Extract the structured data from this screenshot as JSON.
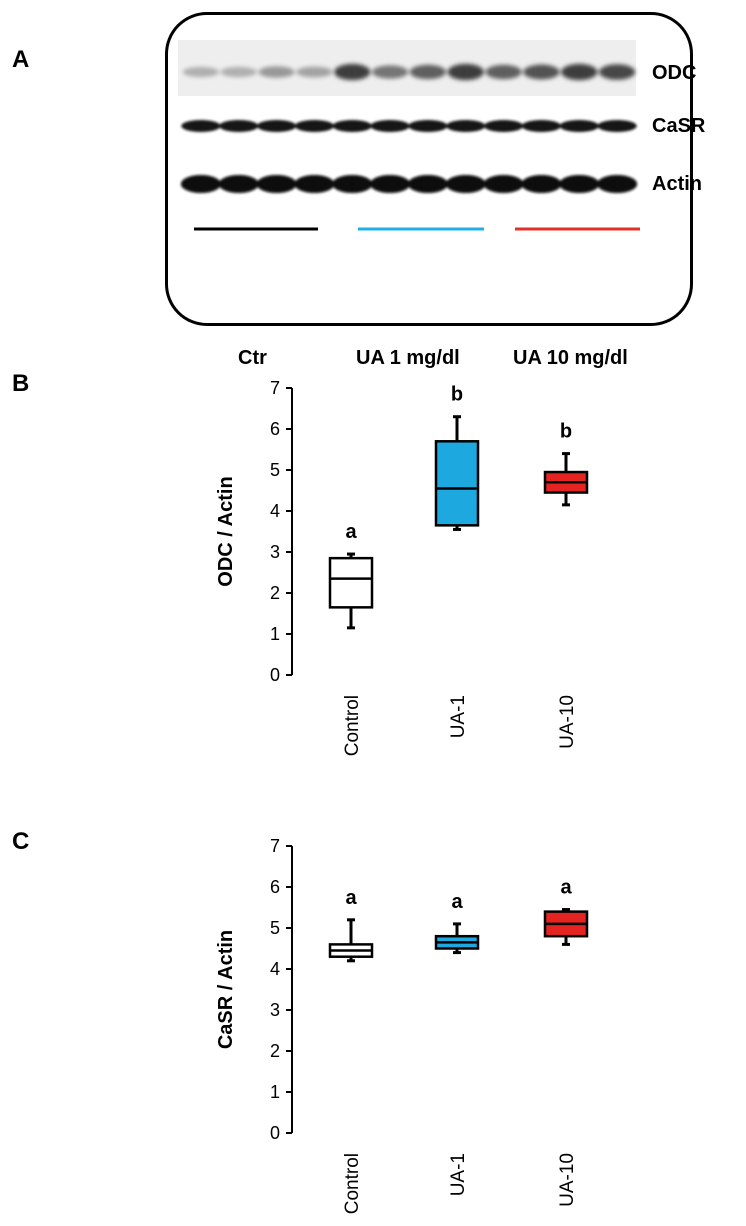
{
  "panels": {
    "a": {
      "letter": "A"
    },
    "b": {
      "letter": "B"
    },
    "c": {
      "letter": "C"
    }
  },
  "blot": {
    "bands": [
      "ODC",
      "CaSR",
      "Actin"
    ],
    "groups": [
      {
        "label": "Ctr",
        "color": "#000000"
      },
      {
        "label": "UA 1 mg/dl",
        "color": "#1fb0e6"
      },
      {
        "label": "UA 10 mg/dl",
        "color": "#e0302a"
      }
    ]
  },
  "chart_data": [
    {
      "type": "box",
      "ylabel": "ODC / Actin",
      "ylim": [
        0,
        7
      ],
      "yticks": [
        0,
        1,
        2,
        3,
        4,
        5,
        6,
        7
      ],
      "categories": [
        "Control",
        "UA-1",
        "UA-10"
      ],
      "fills": [
        "#ffffff",
        "#1ea8e0",
        "#e52421"
      ],
      "boxes": [
        {
          "min": 1.15,
          "q1": 1.65,
          "median": 2.35,
          "q3": 2.85,
          "max": 2.95
        },
        {
          "min": 3.55,
          "q1": 3.65,
          "median": 4.55,
          "q3": 5.7,
          "max": 6.3
        },
        {
          "min": 4.15,
          "q1": 4.45,
          "median": 4.7,
          "q3": 4.95,
          "max": 5.4
        }
      ],
      "annotations": [
        "a",
        "b",
        "b"
      ]
    },
    {
      "type": "box",
      "ylabel": "CaSR / Actin",
      "ylim": [
        0,
        7
      ],
      "yticks": [
        0,
        1,
        2,
        3,
        4,
        5,
        6,
        7
      ],
      "categories": [
        "Control",
        "UA-1",
        "UA-10"
      ],
      "fills": [
        "#ffffff",
        "#1ea8e0",
        "#e52421"
      ],
      "boxes": [
        {
          "min": 4.2,
          "q1": 4.3,
          "median": 4.45,
          "q3": 4.6,
          "max": 5.2
        },
        {
          "min": 4.4,
          "q1": 4.5,
          "median": 4.65,
          "q3": 4.8,
          "max": 5.1
        },
        {
          "min": 4.6,
          "q1": 4.8,
          "median": 5.1,
          "q3": 5.4,
          "max": 5.45
        }
      ],
      "annotations": [
        "a",
        "a",
        "a"
      ]
    }
  ]
}
